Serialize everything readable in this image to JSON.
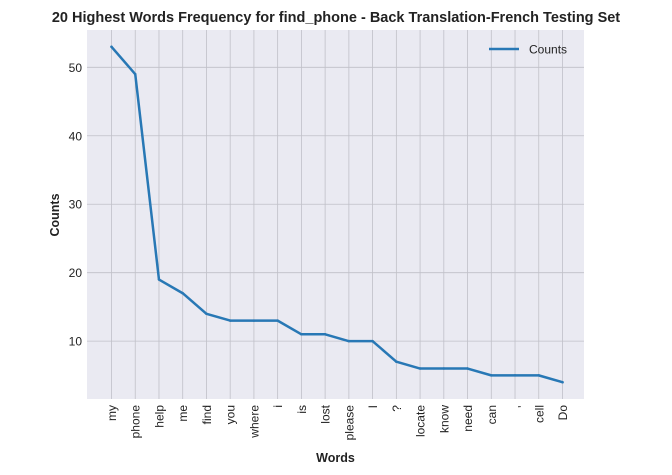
{
  "chart_data": {
    "type": "line",
    "title": "20 Highest Words Frequency for find_phone - Back Translation-French Testing Set",
    "xlabel": "Words",
    "ylabel": "Counts",
    "categories": [
      "my",
      "phone",
      "help",
      "me",
      "find",
      "you",
      "where",
      "i",
      "is",
      "lost",
      "please",
      "I",
      "?",
      "locate",
      "know",
      "need",
      "can",
      ",",
      "cell",
      "Do"
    ],
    "series": [
      {
        "name": "Counts",
        "values": [
          53,
          49,
          19,
          17,
          14,
          13,
          13,
          13,
          11,
          11,
          10,
          10,
          7,
          6,
          6,
          6,
          5,
          5,
          5,
          4
        ]
      }
    ],
    "ylim": [
      1.55,
      55.45
    ],
    "yticks": [
      10,
      20,
      30,
      40,
      50
    ],
    "grid": true,
    "legend": "top-right",
    "colors": {
      "line": "#2878b5",
      "plot_bg": "#eaeaf2",
      "grid": "#c0c0c8"
    }
  }
}
